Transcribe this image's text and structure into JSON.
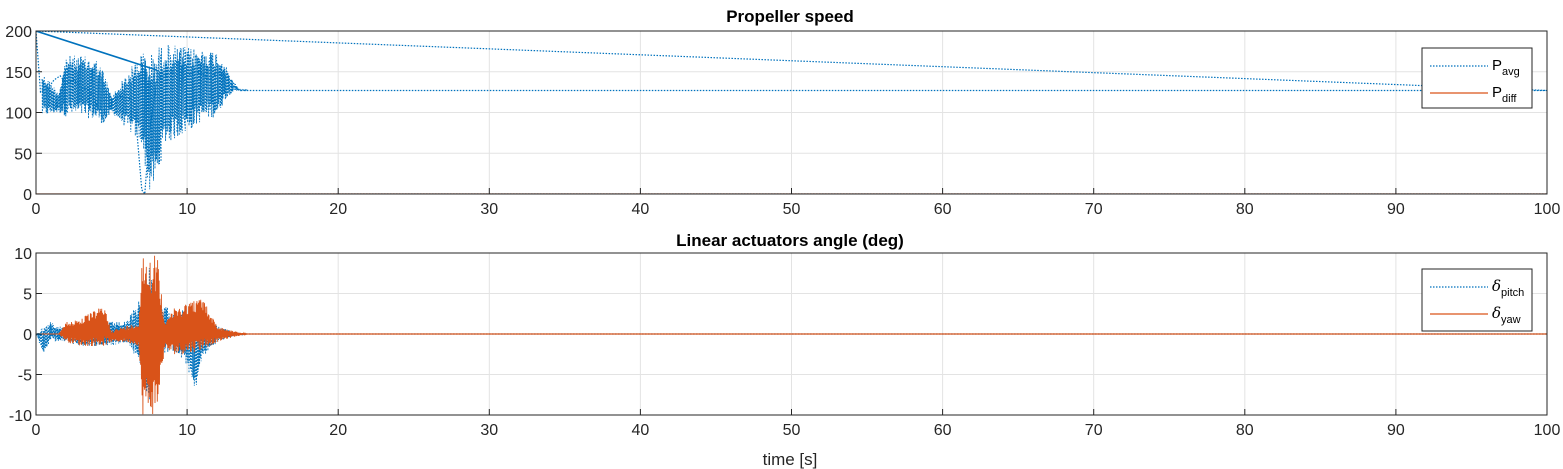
{
  "chart_data": [
    {
      "type": "line",
      "title": "Propeller speed",
      "xlabel": "",
      "ylabel": "",
      "xlim": [
        0,
        100
      ],
      "ylim": [
        0,
        200
      ],
      "xticks": [
        0,
        10,
        20,
        30,
        40,
        50,
        60,
        70,
        80,
        90,
        100
      ],
      "yticks": [
        0,
        50,
        100,
        150,
        200
      ],
      "grid": true,
      "legend_position": "top-right",
      "series": [
        {
          "name": "P_avg",
          "legend_main": "P",
          "legend_sub": "avg",
          "color": "#0072BD",
          "style": "dotted",
          "x": [
            0,
            0.3,
            0.8,
            1.2,
            1.6,
            2.0,
            2.5,
            3.0,
            3.5,
            4.0,
            4.5,
            5.0,
            5.5,
            6.0,
            6.5,
            7.0,
            7.2,
            7.5,
            8.0,
            8.5,
            9.0,
            9.5,
            10.0,
            10.5,
            11.0,
            11.5,
            12.0,
            12.5,
            13.0,
            13.5,
            100
          ],
          "y": [
            200,
            125,
            130,
            140,
            145,
            135,
            140,
            130,
            128,
            110,
            90,
            110,
            120,
            118,
            115,
            5,
            0,
            75,
            140,
            145,
            150,
            140,
            145,
            150,
            148,
            140,
            150,
            145,
            132,
            127,
            127
          ],
          "envelope_note": "oscillation band",
          "band_x": [
            0.4,
            1.5,
            2.0,
            3.0,
            4.0,
            4.5,
            5.0,
            7.0,
            7.5,
            8.0,
            8.5,
            10.0,
            11.0,
            12.0,
            12.5,
            13.0,
            13.5
          ],
          "band_lo": [
            95,
            100,
            95,
            95,
            90,
            85,
            100,
            60,
            0,
            15,
            60,
            75,
            90,
            95,
            115,
            125,
            127
          ],
          "band_hi": [
            150,
            125,
            170,
            170,
            165,
            150,
            120,
            175,
            170,
            180,
            185,
            180,
            178,
            175,
            160,
            140,
            128
          ],
          "ramp": [
            {
              "x": [
                0,
                100
              ],
              "y": [
                200,
                127
              ]
            },
            {
              "x": [
                0,
                8
              ],
              "y": [
                200,
                152
              ]
            }
          ]
        },
        {
          "name": "P_diff",
          "legend_main": "P",
          "legend_sub": "diff",
          "color": "#D95319",
          "style": "solid",
          "x": [
            0,
            100
          ],
          "y": [
            0,
            0
          ]
        }
      ]
    },
    {
      "type": "line",
      "title": "Linear actuators angle (deg)",
      "xlabel": "time [s]",
      "ylabel": "",
      "xlim": [
        0,
        100
      ],
      "ylim": [
        -10,
        10
      ],
      "xticks": [
        0,
        10,
        20,
        30,
        40,
        50,
        60,
        70,
        80,
        90,
        100
      ],
      "yticks": [
        -10,
        -5,
        0,
        5,
        10
      ],
      "grid": true,
      "legend_position": "top-right",
      "series": [
        {
          "name": "δ_pitch",
          "legend_main": "δ",
          "legend_sub": "pitch",
          "color": "#0072BD",
          "style": "dotted",
          "band_x": [
            0,
            0.5,
            1.0,
            1.5,
            2.0,
            3.0,
            4.0,
            5.0,
            6.0,
            7.0,
            7.5,
            8.0,
            9.0,
            10.0,
            10.5,
            11.0,
            12.0,
            13.0,
            14.0,
            100
          ],
          "band_lo": [
            0,
            -2.5,
            -0.8,
            -1.0,
            -1.0,
            -1.5,
            -1.5,
            -1.5,
            -1.0,
            -4.0,
            -9.0,
            -3.0,
            -2.0,
            -4.0,
            -7.5,
            -3.0,
            -1.0,
            -0.3,
            0,
            0
          ],
          "band_hi": [
            0,
            1.0,
            1.5,
            1.0,
            1.0,
            0.8,
            1.5,
            1.5,
            1.5,
            5.0,
            9.0,
            4.0,
            3.0,
            3.0,
            1.0,
            1.5,
            1.0,
            0.3,
            0,
            0
          ]
        },
        {
          "name": "δ_yaw",
          "legend_main": "δ",
          "legend_sub": "yaw",
          "color": "#D95319",
          "style": "solid",
          "band_x": [
            0,
            1.5,
            2.0,
            3.0,
            4.0,
            4.5,
            5.0,
            6.0,
            6.8,
            7.0,
            7.5,
            8.0,
            8.5,
            9.0,
            10.0,
            11.0,
            12.0,
            13.0,
            14.0,
            100
          ],
          "band_lo": [
            0,
            0,
            -1.0,
            -1.5,
            -1.5,
            -1.5,
            -1.0,
            -1.0,
            -1.5,
            -10,
            -10,
            -10,
            -2.0,
            -2.5,
            -2.5,
            -2.0,
            -1.0,
            -0.4,
            0,
            0
          ],
          "band_hi": [
            0,
            0,
            1.5,
            2.0,
            3.0,
            3.5,
            0.5,
            1.0,
            1.5,
            10,
            10,
            10,
            2.0,
            3.0,
            4.0,
            4.5,
            1.0,
            0.4,
            0,
            0
          ]
        }
      ]
    }
  ]
}
